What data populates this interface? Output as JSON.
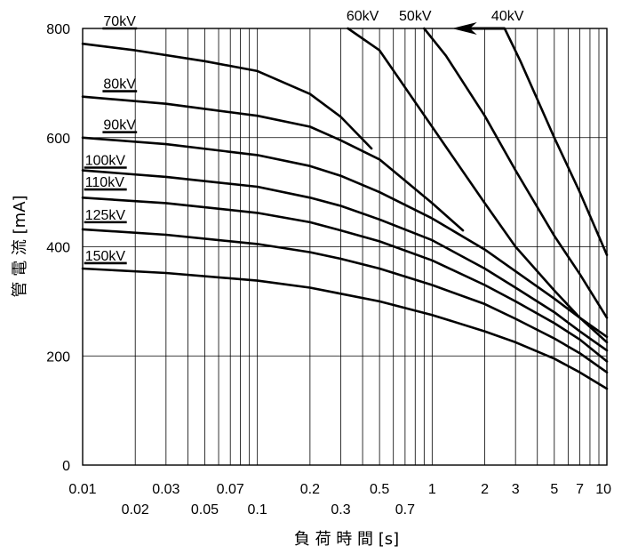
{
  "chart_data": {
    "type": "line",
    "title": "",
    "xlabel": "負 荷 時 間 [s]",
    "ylabel": "管 電 流 [mA]",
    "x_scale": "log",
    "xlim": [
      0.01,
      10
    ],
    "ylim": [
      0,
      800
    ],
    "grid": true,
    "x_ticks": [
      {
        "value": 0.01,
        "label": "0.01",
        "row": 0
      },
      {
        "value": 0.02,
        "label": "0.02",
        "row": 1
      },
      {
        "value": 0.03,
        "label": "0.03",
        "row": 0
      },
      {
        "value": 0.05,
        "label": "0.05",
        "row": 1
      },
      {
        "value": 0.07,
        "label": "0.07",
        "row": 0
      },
      {
        "value": 0.1,
        "label": "0.1",
        "row": 1
      },
      {
        "value": 0.2,
        "label": "0.2",
        "row": 0
      },
      {
        "value": 0.3,
        "label": "0.3",
        "row": 1
      },
      {
        "value": 0.5,
        "label": "0.5",
        "row": 0
      },
      {
        "value": 0.7,
        "label": "0.7",
        "row": 1
      },
      {
        "value": 1,
        "label": "1",
        "row": 0
      },
      {
        "value": 2,
        "label": "2",
        "row": 0
      },
      {
        "value": 3,
        "label": "3",
        "row": 0
      },
      {
        "value": 5,
        "label": "5",
        "row": 0
      },
      {
        "value": 7,
        "label": "7",
        "row": 0
      },
      {
        "value": 10,
        "label": "10",
        "row": 0
      }
    ],
    "x_minor_grid": [
      0.04,
      0.06,
      0.08,
      0.09,
      0.4,
      0.6,
      0.8,
      0.9,
      4,
      6,
      8,
      9
    ],
    "y_ticks": [
      {
        "value": 0,
        "label": "0"
      },
      {
        "value": 200,
        "label": "200"
      },
      {
        "value": 400,
        "label": "400"
      },
      {
        "value": 600,
        "label": "600"
      },
      {
        "value": 800,
        "label": "800"
      }
    ],
    "series": [
      {
        "name": "70kV",
        "label_pos": "inside",
        "label_at": [
          0.013,
          800
        ],
        "x": [
          0.01,
          0.02,
          0.05,
          0.1,
          0.2,
          0.3,
          0.45
        ],
        "y": [
          772,
          760,
          740,
          722,
          680,
          638,
          580
        ]
      },
      {
        "name": "80kV",
        "label_pos": "inside",
        "label_at": [
          0.013,
          685
        ],
        "x": [
          0.01,
          0.03,
          0.1,
          0.2,
          0.3,
          0.5,
          1,
          1.5
        ],
        "y": [
          675,
          662,
          640,
          620,
          595,
          560,
          480,
          430
        ]
      },
      {
        "name": "90kV",
        "label_pos": "inside",
        "label_at": [
          0.013,
          610
        ],
        "x": [
          0.01,
          0.03,
          0.1,
          0.2,
          0.3,
          0.5,
          1,
          2,
          3,
          5,
          7,
          10
        ],
        "y": [
          600,
          588,
          568,
          548,
          530,
          500,
          452,
          395,
          355,
          305,
          270,
          235
        ]
      },
      {
        "name": "100kV",
        "label_pos": "inside",
        "label_at": [
          0.0102,
          545
        ],
        "x": [
          0.01,
          0.03,
          0.1,
          0.2,
          0.3,
          0.5,
          1,
          2,
          3,
          5,
          7,
          10
        ],
        "y": [
          540,
          528,
          510,
          490,
          475,
          450,
          412,
          360,
          325,
          280,
          245,
          210
        ]
      },
      {
        "name": "110kV",
        "label_pos": "inside",
        "label_at": [
          0.0102,
          505
        ],
        "x": [
          0.01,
          0.03,
          0.1,
          0.2,
          0.3,
          0.5,
          1,
          2,
          3,
          5,
          7,
          10
        ],
        "y": [
          490,
          480,
          462,
          445,
          430,
          410,
          375,
          330,
          300,
          260,
          230,
          190
        ]
      },
      {
        "name": "125kV",
        "label_pos": "inside",
        "label_at": [
          0.0102,
          445
        ],
        "x": [
          0.01,
          0.03,
          0.1,
          0.2,
          0.3,
          0.5,
          1,
          2,
          3,
          5,
          7,
          10
        ],
        "y": [
          432,
          422,
          405,
          390,
          378,
          360,
          330,
          295,
          268,
          232,
          205,
          170
        ]
      },
      {
        "name": "150kV",
        "label_pos": "inside",
        "label_at": [
          0.0102,
          370
        ],
        "x": [
          0.01,
          0.03,
          0.1,
          0.2,
          0.3,
          0.5,
          1,
          2,
          3,
          5,
          7,
          10
        ],
        "y": [
          360,
          352,
          338,
          325,
          314,
          300,
          275,
          245,
          225,
          195,
          170,
          140
        ]
      },
      {
        "name": "60kV",
        "label_pos": "top",
        "label_at": [
          0.4,
          800
        ],
        "x": [
          0.33,
          0.5,
          1,
          2,
          3,
          5,
          7,
          10
        ],
        "y": [
          800,
          760,
          620,
          480,
          400,
          320,
          270,
          225
        ]
      },
      {
        "name": "50kV",
        "label_pos": "top",
        "label_at": [
          0.8,
          800
        ],
        "x": [
          0.9,
          1.2,
          2,
          3,
          5,
          7,
          10
        ],
        "y": [
          800,
          750,
          640,
          540,
          420,
          350,
          270
        ]
      },
      {
        "name": "40kV",
        "label_pos": "top",
        "label_at": [
          2.7,
          800
        ],
        "x": [
          2.6,
          3.2,
          5,
          7,
          10
        ],
        "y": [
          800,
          740,
          600,
          500,
          385
        ]
      }
    ],
    "annotation": {
      "type": "arrow",
      "from": [
        2.6,
        800
      ],
      "to": [
        1.3,
        800
      ]
    }
  }
}
